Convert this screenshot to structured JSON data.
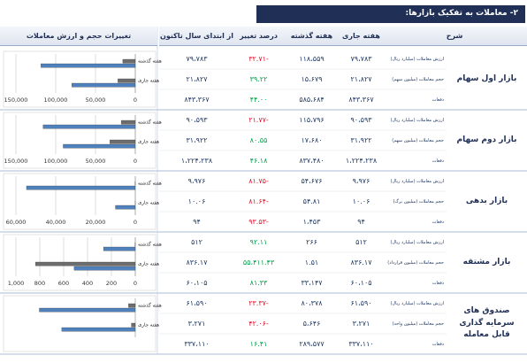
{
  "header": {
    "title": "۲- معاملات به تفکیک بازارها:"
  },
  "table": {
    "columns": [
      "شرح",
      "هفته جاری",
      "هفته گذشته",
      "درصد تغییر",
      "از ابتدای سال تاکنون",
      "تغییرات حجم و ارزش معاملات"
    ],
    "groups": [
      {
        "name": "بازار اول سهام",
        "rows": [
          [
            "ارزش معاملات (میلیارد ریال)",
            "۷۹،۷۸۳",
            "۱۱۸،۵۵۹",
            "-۳۲.۷۱",
            "۷۹،۷۸۳"
          ],
          [
            "حجم معاملات (میلیون سهم)",
            "۲۱،۸۲۷",
            "۱۵،۶۷۹",
            "۳۹.۲۲",
            "۲۱،۸۲۷"
          ],
          [
            "دفعات",
            "۸۴۳،۳۶۷",
            "۵۸۵،۶۸۴",
            "۴۴.۰۰",
            "۸۴۳،۳۶۷"
          ]
        ]
      },
      {
        "name": "بازار دوم سهام",
        "rows": [
          [
            "ارزش معاملات (میلیارد ریال)",
            "۹۰،۵۹۳",
            "۱۱۵،۷۹۶",
            "-۲۱.۷۷",
            "۹۰،۵۹۳"
          ],
          [
            "حجم معاملات (میلیون سهم)",
            "۳۱،۹۲۲",
            "۱۷،۶۸۰",
            "۸۰.۵۵",
            "۳۱،۹۲۲"
          ],
          [
            "دفعات",
            "۱،۲۲۴،۲۳۸",
            "۸۳۷،۴۸۰",
            "۴۶.۱۸",
            "۱،۲۲۴،۲۳۸"
          ]
        ]
      },
      {
        "name": "بازار بدهی",
        "rows": [
          [
            "ارزش معاملات (میلیارد ریال)",
            "۹،۹۷۶",
            "۵۴،۶۷۶",
            "-۸۱.۷۵",
            "۹،۹۷۶"
          ],
          [
            "حجم معاملات (میلیون برگ)",
            "۱۰.۰۶",
            "۵۴.۸۱",
            "-۸۱.۶۴",
            "۱۰.۰۶"
          ],
          [
            "دفعات",
            "۹۴",
            "۱،۴۵۳",
            "-۹۳.۵۳",
            "۹۴"
          ]
        ]
      },
      {
        "name": "بازار مشتقه",
        "rows": [
          [
            "ارزش معاملات (میلیارد ریال)",
            "۵۱۲",
            "۲۶۶",
            "۹۲.۱۱",
            "۵۱۲"
          ],
          [
            "حجم معاملات (میلیون قرارداد)",
            "۸۳۶.۱۷",
            "۱.۵۱",
            "۵۵،۴۱۱.۴۳",
            "۸۳۶.۱۷"
          ],
          [
            "دفعات",
            "۶۰،۱۰۵",
            "۳۳،۱۴۷",
            "۸۱.۳۳",
            "۶۰،۱۰۵"
          ]
        ]
      },
      {
        "name": "صندوق های سرمایه گذاری قابل معامله",
        "rows": [
          [
            "ارزش معاملات (میلیارد ریال)",
            "۶۱،۵۹۰",
            "۸۰،۳۷۸",
            "-۲۳.۳۷",
            "۶۱،۵۹۰"
          ],
          [
            "حجم معاملات (میلیون واحد)",
            "۳،۲۷۱",
            "۵،۶۴۶",
            "-۴۲.۰۶",
            "۳،۲۷۱"
          ],
          [
            "دفعات",
            "۳۳۷،۱۱۰",
            "۲۸۹،۵۷۷",
            "۱۶.۴۱",
            "۳۳۷،۱۱۰"
          ]
        ]
      }
    ]
  },
  "chart_data": [
    {
      "type": "bar",
      "categories": [
        "هفته گذشته",
        "هفته جاری"
      ],
      "series": [
        {
          "color": "#6d6d6d",
          "values": [
            15679,
            21827
          ]
        },
        {
          "color": "#4f81bd",
          "values": [
            118559,
            79783
          ]
        }
      ],
      "xlim": [
        0,
        150000
      ],
      "xticks": [
        0,
        {
          "value": 50000,
          "label": "50,000"
        },
        {
          "value": 100000,
          "label": "100,000"
        },
        {
          "value": 150000,
          "label": "150,000"
        }
      ]
    },
    {
      "type": "bar",
      "categories": [
        "هفته گذشته",
        "هفته جاری"
      ],
      "series": [
        {
          "color": "#6d6d6d",
          "values": [
            17680,
            31922
          ]
        },
        {
          "color": "#4f81bd",
          "values": [
            115796,
            90593
          ]
        }
      ],
      "xlim": [
        0,
        150000
      ],
      "xticks": [
        0,
        {
          "value": 50000,
          "label": "50,000"
        },
        {
          "value": 100000,
          "label": "100,000"
        },
        {
          "value": 150000,
          "label": "150,000"
        }
      ]
    },
    {
      "type": "bar",
      "categories": [
        "هفته گذشته",
        "هفته جاری"
      ],
      "series": [
        {
          "color": "#6d6d6d",
          "values": [
            54.81,
            10.06
          ]
        },
        {
          "color": "#4f81bd",
          "values": [
            54676,
            9976
          ]
        }
      ],
      "xlim": [
        0,
        60000
      ],
      "xticks": [
        0,
        {
          "value": 20000,
          "label": "20,000"
        },
        {
          "value": 40000,
          "label": "40,000"
        },
        {
          "value": 60000,
          "label": "60,000"
        }
      ]
    },
    {
      "type": "bar",
      "categories": [
        "هفته گذشته",
        "هفته جاری"
      ],
      "series": [
        {
          "color": "#6d6d6d",
          "values": [
            1.51,
            836.17
          ]
        },
        {
          "color": "#4f81bd",
          "values": [
            266,
            512
          ]
        }
      ],
      "xlim": [
        0,
        1000
      ],
      "xticks": [
        0,
        200,
        400,
        600,
        800,
        {
          "value": 1000,
          "label": "1,000"
        }
      ]
    },
    {
      "type": "bar",
      "categories": [
        "هفته گذشته",
        "هفته جاری"
      ],
      "series": [
        {
          "color": "#6d6d6d",
          "values": [
            5646,
            3271
          ]
        },
        {
          "color": "#4f81bd",
          "values": [
            80378,
            61590
          ]
        }
      ],
      "xlim": [
        0,
        100000
      ]
    }
  ]
}
